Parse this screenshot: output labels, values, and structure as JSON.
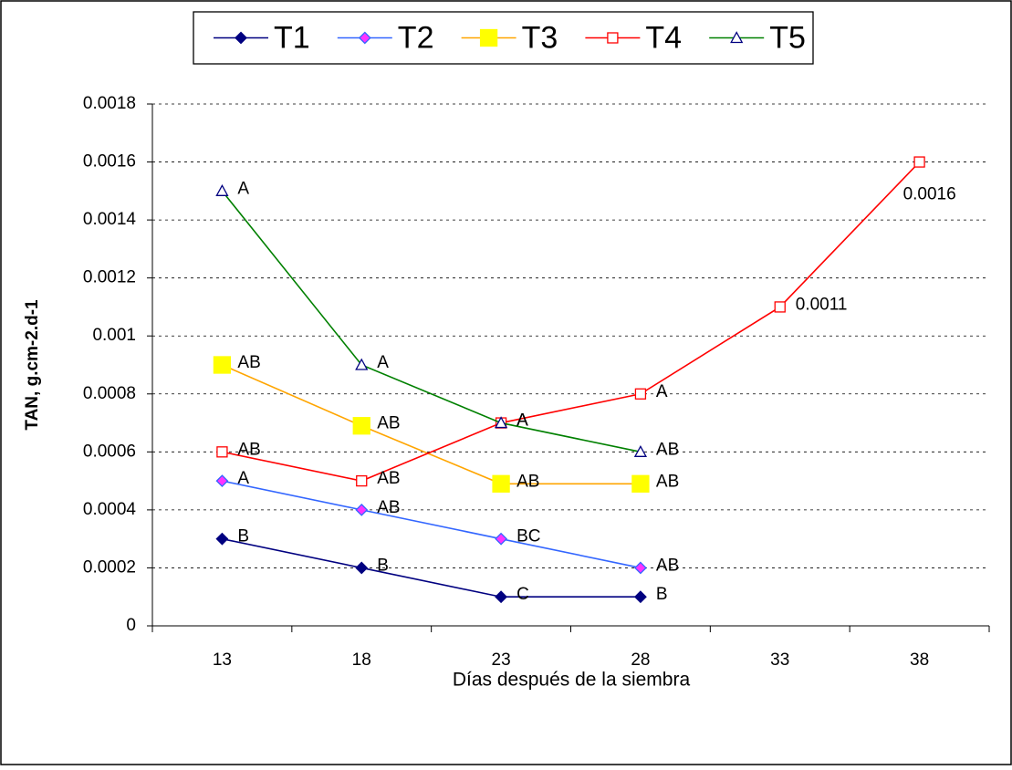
{
  "chart_data": {
    "type": "line",
    "x_label": "Días después de la siembra",
    "y_label": "TAN, g.cm-2.d-1",
    "categories": [
      "13",
      "18",
      "23",
      "28",
      "33",
      "38"
    ],
    "ylim": [
      0,
      0.0018
    ],
    "yticks": [
      0,
      0.0002,
      0.0004,
      0.0006,
      0.0008,
      0.001,
      0.0012,
      0.0014,
      0.0016,
      0.0018
    ],
    "grid": true,
    "legend": "top",
    "series": [
      {
        "name": "T1",
        "color": "#000080",
        "marker": "diamond",
        "marker_fill": "#000080",
        "marker_stroke": "#000080",
        "values": [
          0.0003,
          0.0002,
          0.0001,
          0.0001,
          null,
          null
        ],
        "point_labels": [
          "B",
          "B",
          "C",
          "B",
          null,
          null
        ]
      },
      {
        "name": "T2",
        "color": "#3366ff",
        "marker": "diamond",
        "marker_fill": "#ff33ff",
        "marker_stroke": "#3366ff",
        "values": [
          0.0005,
          0.0004,
          0.0003,
          0.0002,
          null,
          null
        ],
        "point_labels": [
          "A",
          "AB",
          "BC",
          "AB",
          null,
          null
        ]
      },
      {
        "name": "T3",
        "color": "#ffa500",
        "marker": "square-big",
        "marker_fill": "#ffff00",
        "marker_stroke": "#ffff00",
        "values": [
          0.0009,
          0.00069,
          0.00049,
          0.00049,
          null,
          null
        ],
        "point_labels": [
          "AB",
          "AB",
          "AB",
          "AB",
          null,
          null
        ]
      },
      {
        "name": "T4",
        "color": "#ff0000",
        "marker": "square",
        "marker_fill": "#ffffff",
        "marker_stroke": "#ff0000",
        "values": [
          0.0006,
          0.0005,
          0.0007,
          0.0008,
          0.0011,
          0.0016
        ],
        "point_labels": [
          "AB",
          "AB",
          "A",
          "A",
          "0.0011",
          "0.0016"
        ]
      },
      {
        "name": "T5",
        "color": "#008000",
        "marker": "triangle",
        "marker_fill": "#ffffff",
        "marker_stroke": "#000080",
        "values": [
          0.0015,
          0.0009,
          0.0007,
          0.0006,
          null,
          null
        ],
        "point_labels": [
          "A",
          "A",
          "A",
          "AB",
          null,
          null
        ]
      }
    ]
  }
}
